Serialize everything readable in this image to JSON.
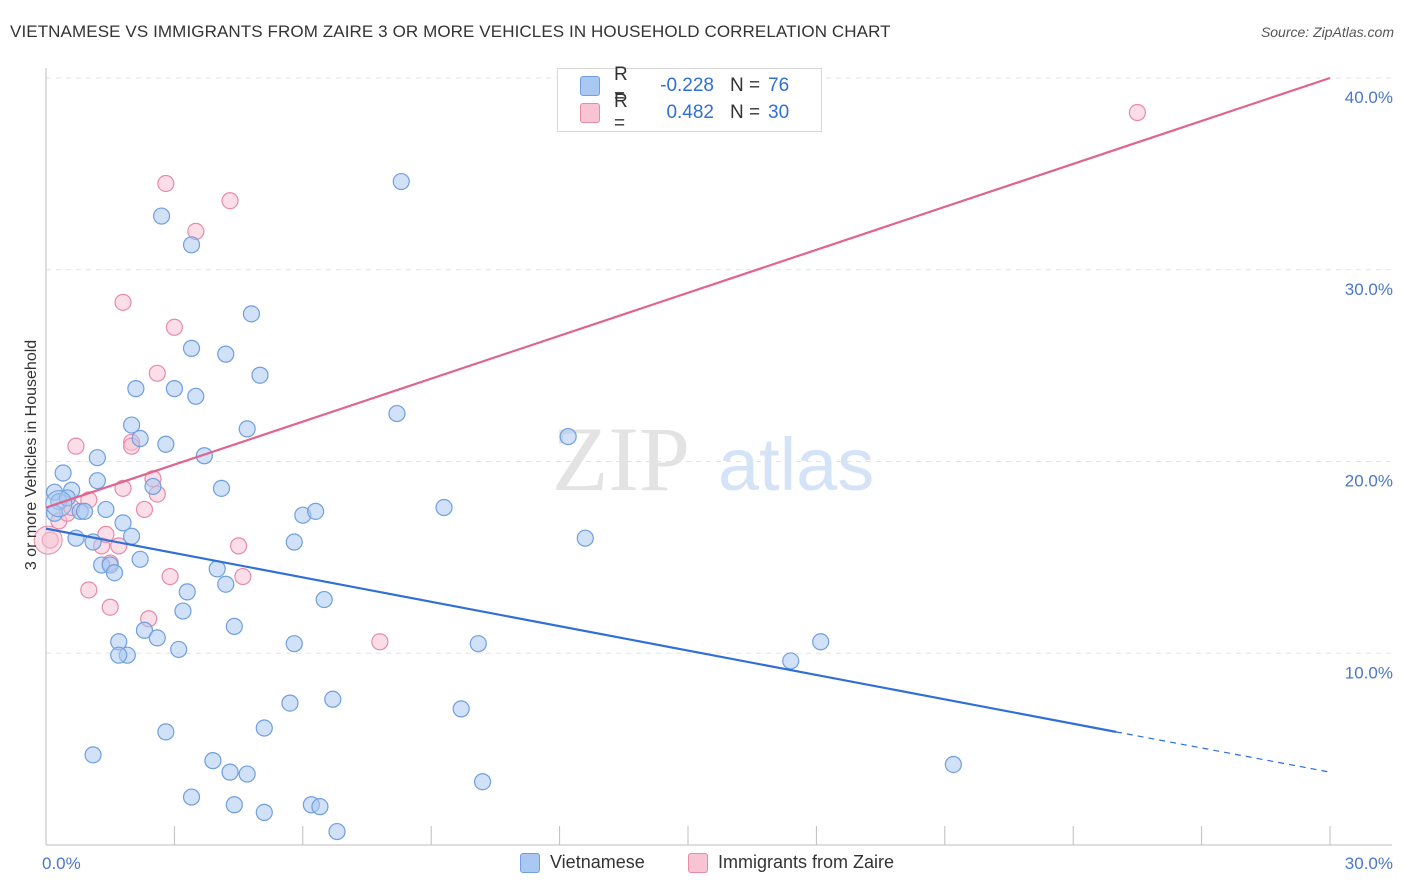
{
  "header": {
    "title": "VIETNAMESE VS IMMIGRANTS FROM ZAIRE 3 OR MORE VEHICLES IN HOUSEHOLD CORRELATION CHART",
    "source": "Source: ZipAtlas.com"
  },
  "watermark": {
    "zip": "ZIP",
    "atlas": "atlas"
  },
  "legend": {
    "rows": [
      {
        "r_label": "R =",
        "r_value": "-0.228",
        "n_label": "N =",
        "n_value": "76",
        "color": "#a9c8f2",
        "border": "#6f9fe0"
      },
      {
        "r_label": "R =",
        "r_value": "0.482",
        "n_label": "N =",
        "n_value": "30",
        "color": "#f8c3d3",
        "border": "#e98aa7"
      }
    ]
  },
  "bottom_legend": {
    "series1": "Vietnamese",
    "series2": "Immigrants from Zaire"
  },
  "chart_data": {
    "type": "scatter",
    "title": "VIETNAMESE VS IMMIGRANTS FROM ZAIRE 3 OR MORE VEHICLES IN HOUSEHOLD CORRELATION CHART",
    "xlabel": "",
    "ylabel": "3 or more Vehicles in Household",
    "xlim": [
      0,
      30
    ],
    "ylim": [
      0,
      40
    ],
    "x_tick_labels": [
      "0.0%",
      "30.0%"
    ],
    "y_ticks": [
      10,
      20,
      30,
      40
    ],
    "y_tick_labels": [
      "10.0%",
      "20.0%",
      "30.0%",
      "40.0%"
    ],
    "grid": true,
    "colors": {
      "vietnamese": "#2f6fd6",
      "zaire": "#e0648f",
      "vietnamese_fill": "#a9c8f2",
      "zaire_fill": "#f8c3d3",
      "tick": "#4a78c8"
    },
    "series": [
      {
        "name": "Vietnamese",
        "r": -0.228,
        "n": 76,
        "trend": {
          "x0": 0.0,
          "y0": 16.5,
          "x1": 25.0,
          "y1": 5.9,
          "dash_x1": 30.0,
          "dash_y1": 3.8
        },
        "points": [
          [
            0.2,
            18.4
          ],
          [
            0.4,
            19.4
          ],
          [
            0.3,
            17.9
          ],
          [
            0.6,
            18.5
          ],
          [
            0.8,
            17.4
          ],
          [
            0.5,
            18.1
          ],
          [
            0.7,
            16.0
          ],
          [
            0.9,
            17.4
          ],
          [
            1.2,
            19.0
          ],
          [
            1.2,
            20.2
          ],
          [
            1.1,
            15.8
          ],
          [
            1.3,
            14.6
          ],
          [
            1.5,
            14.6
          ],
          [
            1.6,
            14.2
          ],
          [
            1.4,
            17.5
          ],
          [
            1.8,
            16.8
          ],
          [
            2.0,
            16.1
          ],
          [
            2.2,
            14.9
          ],
          [
            2.0,
            21.9
          ],
          [
            2.2,
            21.2
          ],
          [
            2.1,
            23.8
          ],
          [
            2.5,
            18.7
          ],
          [
            2.8,
            20.9
          ],
          [
            3.0,
            23.8
          ],
          [
            3.5,
            23.4
          ],
          [
            3.7,
            20.3
          ],
          [
            3.4,
            25.9
          ],
          [
            4.2,
            25.6
          ],
          [
            4.8,
            27.7
          ],
          [
            5.0,
            24.5
          ],
          [
            4.7,
            21.7
          ],
          [
            2.7,
            32.8
          ],
          [
            3.4,
            31.3
          ],
          [
            3.3,
            13.2
          ],
          [
            3.2,
            12.2
          ],
          [
            2.3,
            11.2
          ],
          [
            2.6,
            10.8
          ],
          [
            3.1,
            10.2
          ],
          [
            1.7,
            10.6
          ],
          [
            1.9,
            9.9
          ],
          [
            1.7,
            9.9
          ],
          [
            4.0,
            14.4
          ],
          [
            4.2,
            13.6
          ],
          [
            4.4,
            11.4
          ],
          [
            5.8,
            15.8
          ],
          [
            6.0,
            17.2
          ],
          [
            6.3,
            17.4
          ],
          [
            6.5,
            12.8
          ],
          [
            5.8,
            10.5
          ],
          [
            5.7,
            7.4
          ],
          [
            6.7,
            7.6
          ],
          [
            5.1,
            6.1
          ],
          [
            2.8,
            5.9
          ],
          [
            1.1,
            4.7
          ],
          [
            3.9,
            4.4
          ],
          [
            4.3,
            3.8
          ],
          [
            4.7,
            3.7
          ],
          [
            3.4,
            2.5
          ],
          [
            4.4,
            2.1
          ],
          [
            5.1,
            1.7
          ],
          [
            6.2,
            2.1
          ],
          [
            6.4,
            2.0
          ],
          [
            6.8,
            0.7
          ],
          [
            8.3,
            34.6
          ],
          [
            8.2,
            22.5
          ],
          [
            9.3,
            17.6
          ],
          [
            9.7,
            7.1
          ],
          [
            10.1,
            10.5
          ],
          [
            10.2,
            3.3
          ],
          [
            12.2,
            21.3
          ],
          [
            12.6,
            16.0
          ],
          [
            17.4,
            9.6
          ],
          [
            18.1,
            10.6
          ],
          [
            21.2,
            4.2
          ],
          [
            4.1,
            18.6
          ],
          [
            0.2,
            17.3
          ]
        ]
      },
      {
        "name": "Immigrants from Zaire",
        "r": 0.482,
        "n": 30,
        "trend": {
          "x0": 0.0,
          "y0": 17.6,
          "x1": 30.0,
          "y1": 40.0
        },
        "points": [
          [
            0.1,
            15.9
          ],
          [
            0.3,
            16.9
          ],
          [
            0.5,
            17.3
          ],
          [
            0.6,
            17.6
          ],
          [
            1.0,
            18.0
          ],
          [
            0.7,
            20.8
          ],
          [
            1.3,
            15.6
          ],
          [
            1.5,
            14.7
          ],
          [
            1.0,
            13.3
          ],
          [
            1.5,
            12.4
          ],
          [
            1.7,
            15.6
          ],
          [
            1.8,
            18.6
          ],
          [
            2.0,
            21.0
          ],
          [
            2.0,
            20.8
          ],
          [
            2.3,
            17.5
          ],
          [
            2.6,
            18.3
          ],
          [
            2.5,
            19.1
          ],
          [
            2.6,
            24.6
          ],
          [
            3.0,
            27.0
          ],
          [
            1.8,
            28.3
          ],
          [
            2.8,
            34.5
          ],
          [
            3.5,
            32.0
          ],
          [
            4.3,
            33.6
          ],
          [
            4.5,
            15.6
          ],
          [
            4.6,
            14.0
          ],
          [
            2.9,
            14.0
          ],
          [
            2.4,
            11.8
          ],
          [
            7.8,
            10.6
          ],
          [
            25.5,
            38.2
          ],
          [
            1.4,
            16.2
          ]
        ]
      }
    ]
  }
}
